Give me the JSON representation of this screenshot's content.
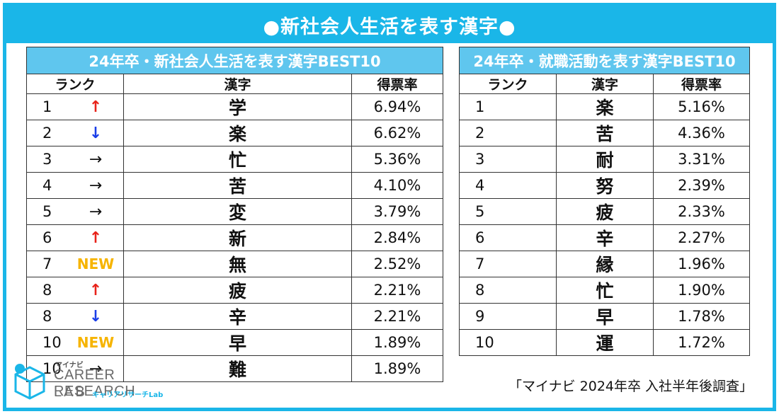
{
  "header": {
    "title": "●新社会人生活を表す漢字●"
  },
  "left_table": {
    "title": "24年卒・新社会人生活を表す漢字BEST10",
    "columns": [
      "ランク",
      "漢字",
      "得票率"
    ],
    "rows": [
      {
        "rank": "1",
        "trend": "↑",
        "trend_type": "up",
        "kanji": "学",
        "rate": "6.94%"
      },
      {
        "rank": "2",
        "trend": "↓",
        "trend_type": "down",
        "kanji": "楽",
        "rate": "6.62%"
      },
      {
        "rank": "3",
        "trend": "→",
        "trend_type": "flat",
        "kanji": "忙",
        "rate": "5.36%"
      },
      {
        "rank": "4",
        "trend": "→",
        "trend_type": "flat",
        "kanji": "苦",
        "rate": "4.10%"
      },
      {
        "rank": "5",
        "trend": "→",
        "trend_type": "flat",
        "kanji": "変",
        "rate": "3.79%"
      },
      {
        "rank": "6",
        "trend": "↑",
        "trend_type": "up",
        "kanji": "新",
        "rate": "2.84%"
      },
      {
        "rank": "7",
        "trend": "NEW",
        "trend_type": "new",
        "kanji": "無",
        "rate": "2.52%"
      },
      {
        "rank": "8",
        "trend": "↑",
        "trend_type": "up",
        "kanji": "疲",
        "rate": "2.21%"
      },
      {
        "rank": "8",
        "trend": "↓",
        "trend_type": "down",
        "kanji": "辛",
        "rate": "2.21%"
      },
      {
        "rank": "10",
        "trend": "NEW",
        "trend_type": "new",
        "kanji": "早",
        "rate": "1.89%"
      },
      {
        "rank": "10",
        "trend": "→",
        "trend_type": "flat",
        "kanji": "難",
        "rate": "1.89%"
      }
    ]
  },
  "right_table": {
    "title": "24年卒・就職活動を表す漢字BEST10",
    "columns": [
      "ランク",
      "漢字",
      "得票率"
    ],
    "rows": [
      {
        "rank": "1",
        "kanji": "楽",
        "rate": "5.16%"
      },
      {
        "rank": "2",
        "kanji": "苦",
        "rate": "4.36%"
      },
      {
        "rank": "3",
        "kanji": "耐",
        "rate": "3.31%"
      },
      {
        "rank": "4",
        "kanji": "努",
        "rate": "2.39%"
      },
      {
        "rank": "5",
        "kanji": "疲",
        "rate": "2.33%"
      },
      {
        "rank": "6",
        "kanji": "辛",
        "rate": "2.27%"
      },
      {
        "rank": "7",
        "kanji": "縁",
        "rate": "1.96%"
      },
      {
        "rank": "8",
        "kanji": "忙",
        "rate": "1.90%"
      },
      {
        "rank": "9",
        "kanji": "早",
        "rate": "1.78%"
      },
      {
        "rank": "10",
        "kanji": "運",
        "rate": "1.72%"
      }
    ]
  },
  "logo": {
    "small_text": "マイナビ",
    "line1": "CAREER RESEARCH",
    "line2": "LAB",
    "sub": "キャリアリサーチLab"
  },
  "source": "「マイナビ 2024年卒 入社半年後調査」",
  "colors": {
    "accent": "#1ab6e8",
    "table_header": "#5fc6ee",
    "up": "#e8231a",
    "down": "#1a3ee8",
    "new": "#f6b400"
  },
  "icons": {
    "logo_mark": "cube-logo-icon"
  }
}
